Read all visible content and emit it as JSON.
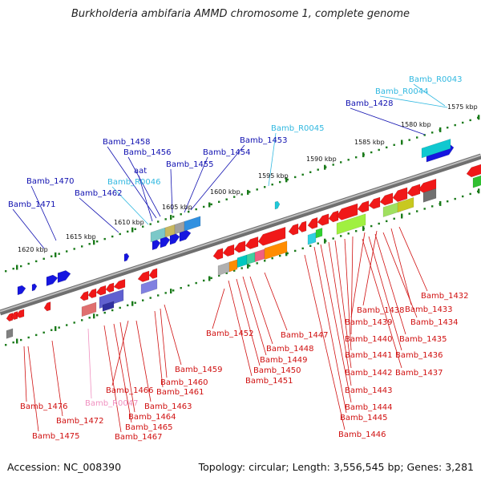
{
  "title": "Burkholderia ambifaria AMMD chromosome 1, complete genome",
  "footer": {
    "accession": "Accession: NC_008390",
    "topology": "Topology: circular; Length: 3,556,545 bp; Genes: 3,281"
  },
  "colors": {
    "upper_label": "#1010b0",
    "rna_label": "#30b8e0",
    "lower_label": "#d01010",
    "pseudo_label": "#f090c0",
    "backbone": "#8a8a8a",
    "track_dots": "#1a7a1a"
  },
  "ticks": [
    "1575 kbp",
    "1580 kbp",
    "1585 kbp",
    "1590 kbp",
    "1595 kbp",
    "1600 kbp",
    "1605 kbp",
    "1610 kbp",
    "1615 kbp",
    "1620 kbp"
  ],
  "upper_labels": [
    "Bamb_R0043",
    "Bamb_R0044",
    "Bamb_1428",
    "Bamb_R0045",
    "Bamb_1453",
    "Bamb_1454",
    "Bamb_1458",
    "Bamb_1456",
    "Bamb_1455",
    "aat",
    "Bamb_R0046",
    "Bamb_1470",
    "Bamb_1462",
    "Bamb_1471"
  ],
  "lower_labels": [
    "Bamb_1432",
    "Bamb_1433",
    "Bamb_1438",
    "Bamb_1434",
    "Bamb_1439",
    "Bamb_1435",
    "Bamb_1440",
    "Bamb_1436",
    "Bamb_1441",
    "Bamb_1437",
    "Bamb_1442",
    "Bamb_1443",
    "Bamb_1444",
    "Bamb_1445",
    "Bamb_1446",
    "Bamb_1447",
    "Bamb_1448",
    "Bamb_1449",
    "Bamb_1450",
    "Bamb_1451",
    "Bamb_1452",
    "Bamb_1459",
    "Bamb_1460",
    "Bamb_1461",
    "Bamb_1466",
    "Bamb_1463",
    "Bamb_1464",
    "Bamb_1465",
    "Bamb_1467",
    "Bamb_R0047",
    "Bamb_1476",
    "Bamb_1472",
    "Bamb_1475"
  ]
}
